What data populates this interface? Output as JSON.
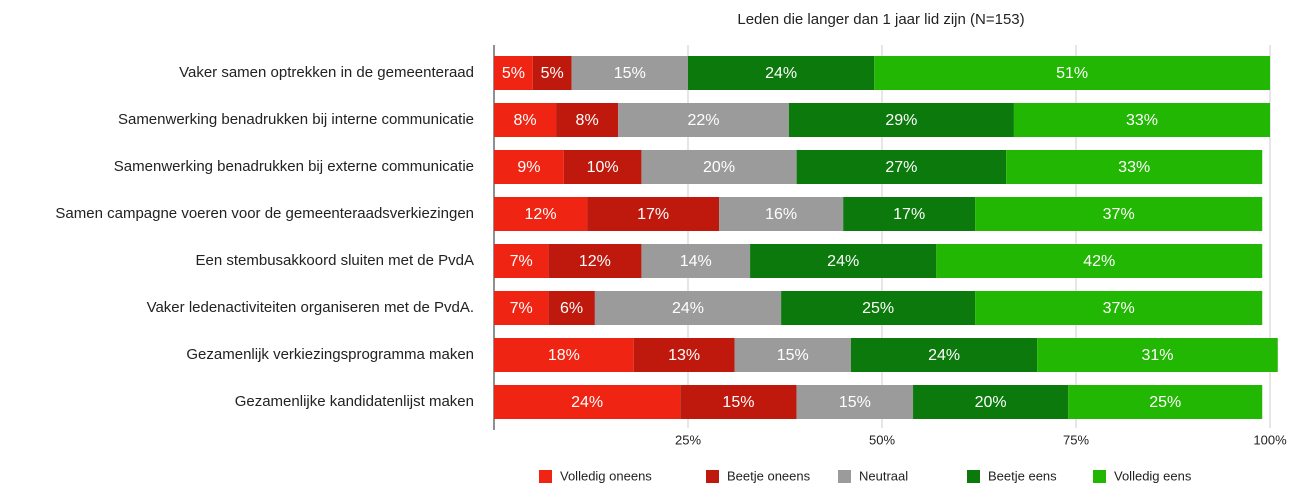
{
  "chart_data": {
    "type": "stacked-barh",
    "title": "Leden die langer dan 1 jaar lid zijn (N=153)",
    "categories": [
      "Vaker samen optrekken in de gemeenteraad",
      "Samenwerking benadrukken bij interne communicatie",
      "Samenwerking benadrukken bij externe communicatie",
      "Samen campagne voeren voor de gemeenteraadsverkiezingen",
      "Een stembusakkoord sluiten met de PvdA",
      "Vaker ledenactiviteiten organiseren met de PvdA.",
      "Gezamenlijk verkiezingsprogramma maken",
      "Gezamenlijke kandidatenlijst maken"
    ],
    "series": [
      {
        "name": "Volledig oneens",
        "color": "#ef2412",
        "values": [
          5,
          8,
          9,
          12,
          7,
          7,
          18,
          24
        ],
        "value_labels": [
          "5%",
          "8%",
          "9%",
          "12%",
          "7%",
          "7%",
          "18%",
          "24%"
        ]
      },
      {
        "name": "Beetje oneens",
        "color": "#bf190d",
        "values": [
          5,
          8,
          10,
          17,
          12,
          6,
          13,
          15
        ],
        "value_labels": [
          "5%",
          "8%",
          "10%",
          "17%",
          "12%",
          "6%",
          "13%",
          "15%"
        ]
      },
      {
        "name": "Neutraal",
        "color": "#9b9b9b",
        "values": [
          15,
          22,
          20,
          16,
          14,
          24,
          15,
          15
        ],
        "value_labels": [
          "15%",
          "22%",
          "20%",
          "16%",
          "14%",
          "24%",
          "15%",
          "15%"
        ]
      },
      {
        "name": "Beetje eens",
        "color": "#0b790b",
        "values": [
          24,
          29,
          27,
          17,
          24,
          25,
          24,
          20
        ],
        "value_labels": [
          "24%",
          "29%",
          "27%",
          "17%",
          "24%",
          "25%",
          "24%",
          "20%"
        ]
      },
      {
        "name": "Volledig eens",
        "color": "#22b702",
        "values": [
          51,
          33,
          33,
          37,
          42,
          37,
          31,
          25
        ],
        "value_labels": [
          "51%",
          "33%",
          "33%",
          "37%",
          "42%",
          "37%",
          "31%",
          "25%"
        ]
      }
    ],
    "xlim": [
      0,
      100
    ],
    "xticks": [
      {
        "value": 25,
        "label": "25%"
      },
      {
        "value": 50,
        "label": "50%"
      },
      {
        "value": 75,
        "label": "75%"
      },
      {
        "value": 100,
        "label": "100%"
      }
    ],
    "grid": true,
    "legend": "bottom"
  }
}
